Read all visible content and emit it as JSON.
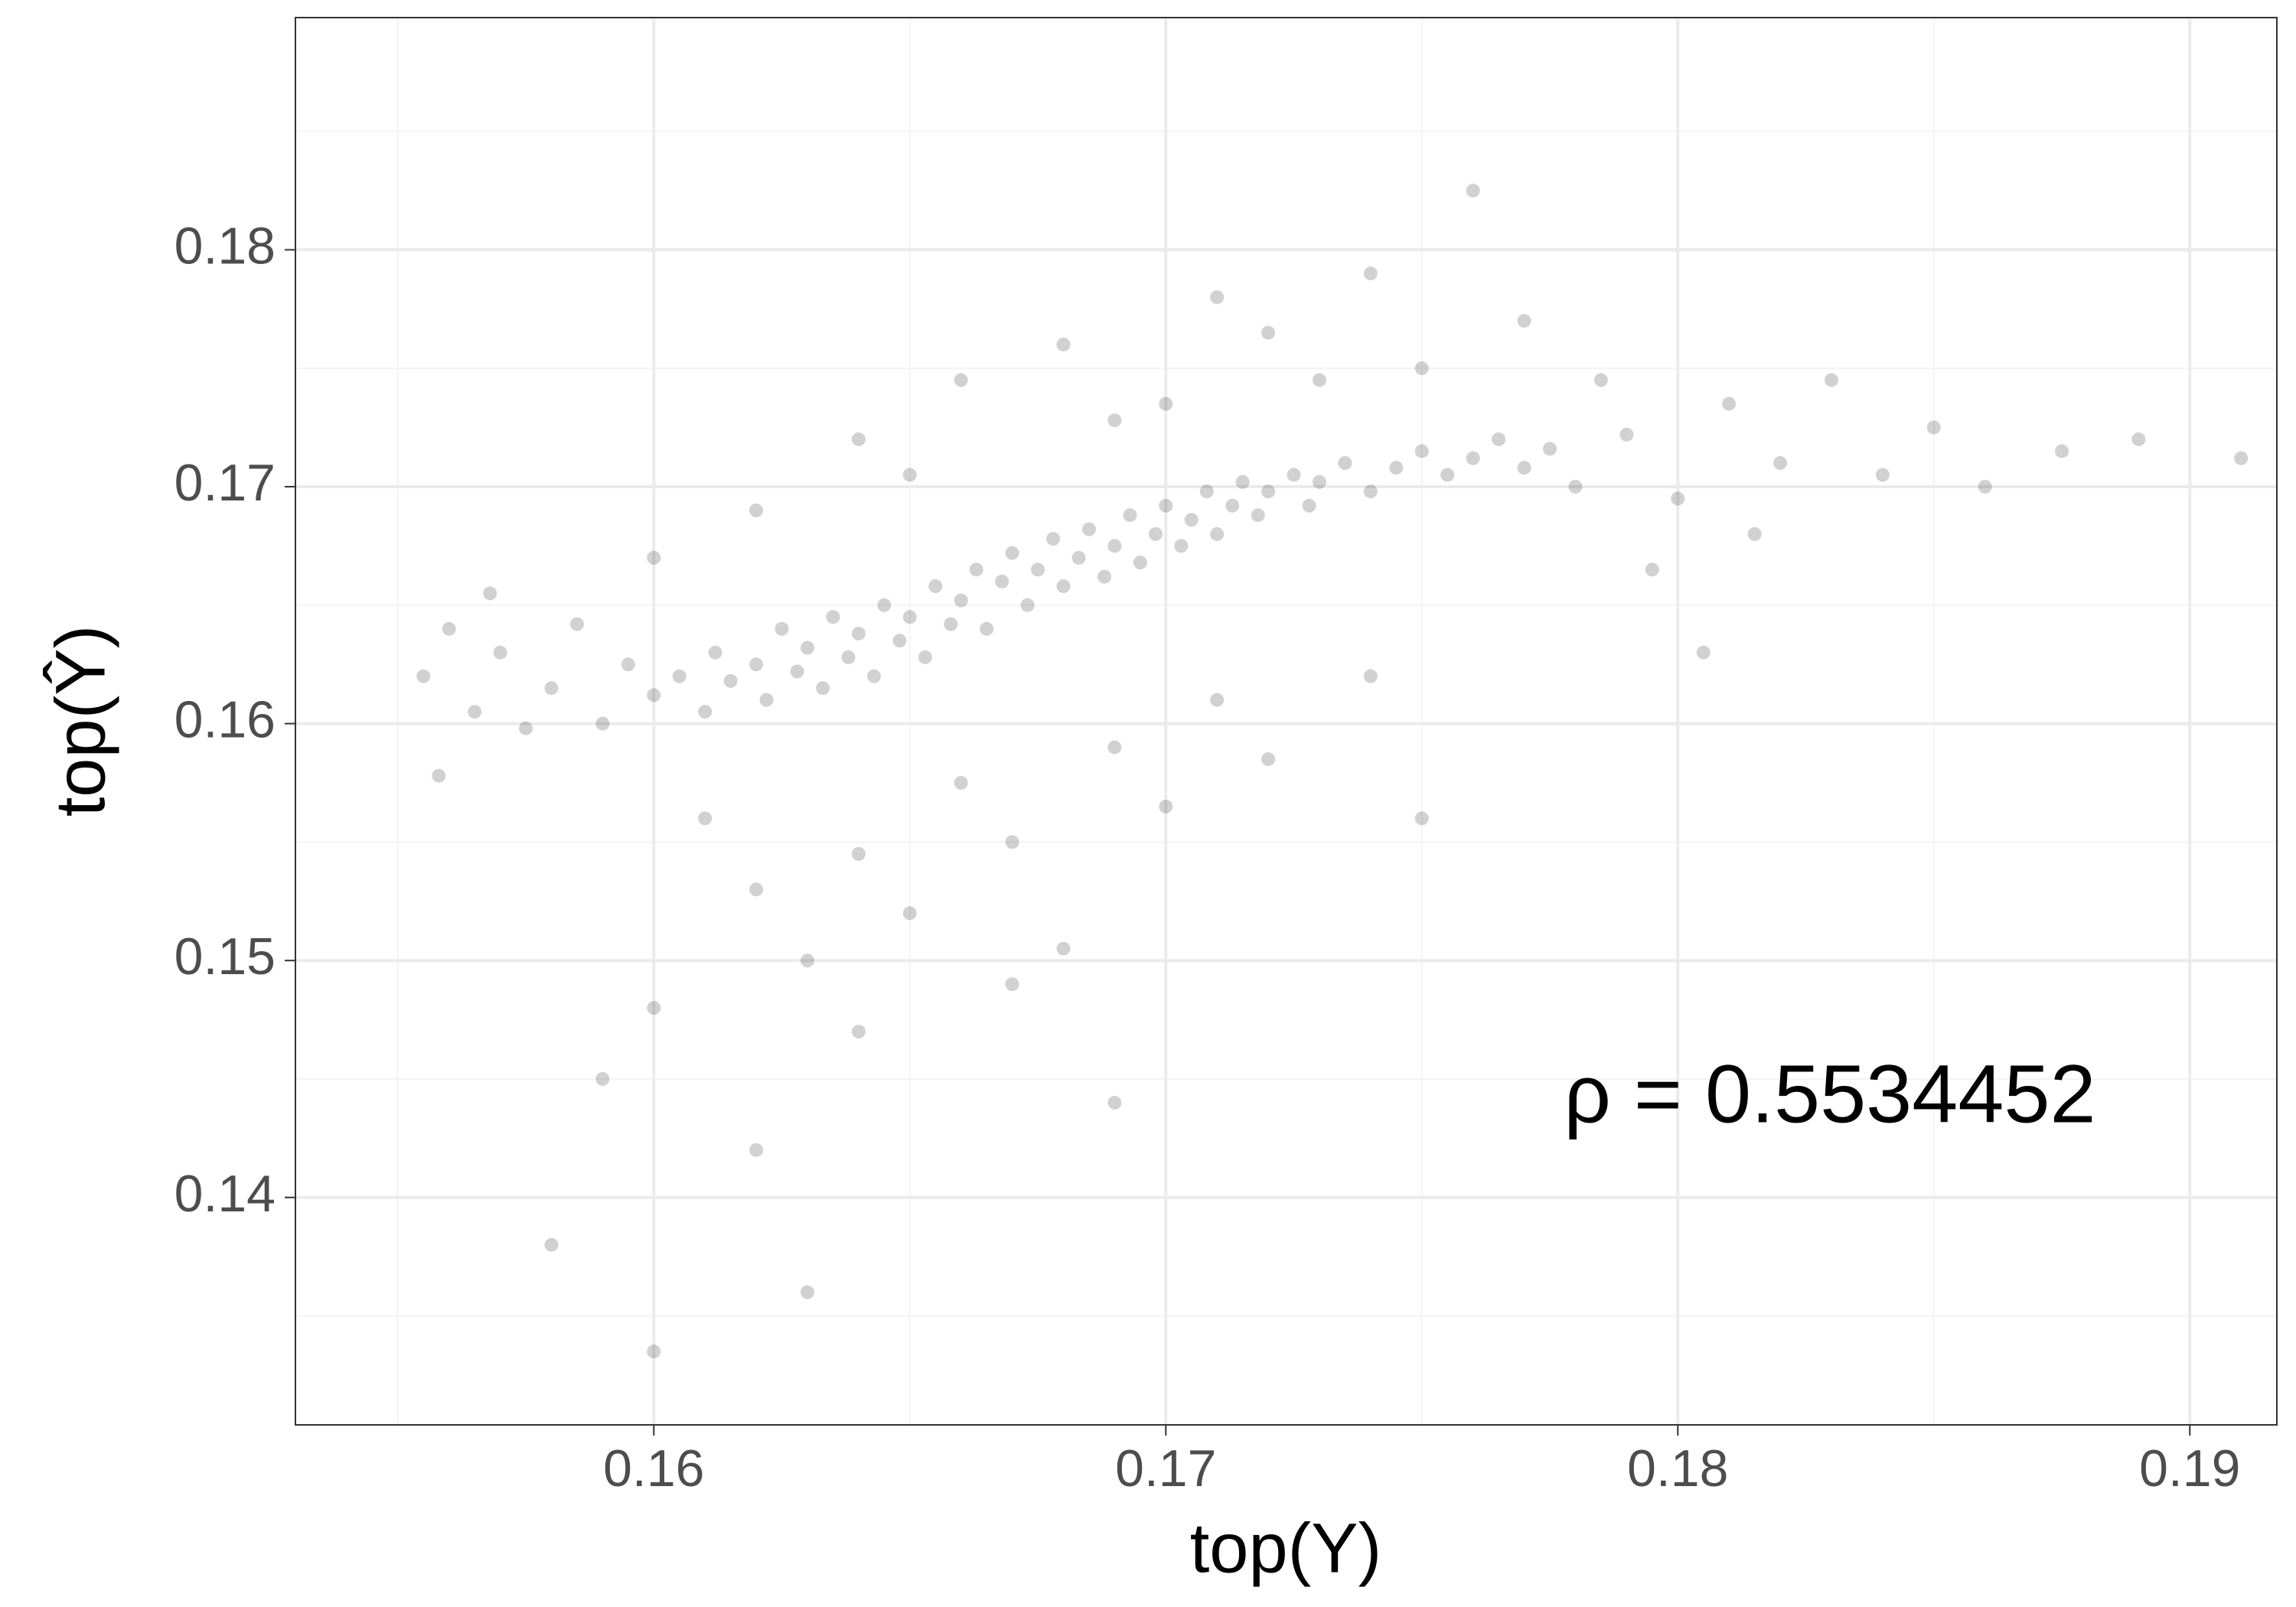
{
  "chart_data": {
    "type": "scatter",
    "x_label": "top(Y)",
    "y_label": "top(Ŷ)",
    "annotation": "ρ = 0.5534452",
    "color": "#000000",
    "alpha": 0.18,
    "grid": true,
    "xlim": [
      0.153,
      0.1917
    ],
    "ylim": [
      0.1304,
      0.1898
    ],
    "xticks": [
      0.16,
      0.17,
      0.18,
      0.19
    ],
    "yticks": [
      0.14,
      0.15,
      0.16,
      0.17,
      0.18
    ],
    "minor_xticks": [
      0.155,
      0.165,
      0.175,
      0.185
    ],
    "minor_yticks": [
      0.135,
      0.145,
      0.155,
      0.165,
      0.175,
      0.185
    ],
    "x": [
      0.16,
      0.1605,
      0.161,
      0.1612,
      0.1615,
      0.162,
      0.1622,
      0.1625,
      0.1628,
      0.163,
      0.1633,
      0.1635,
      0.1638,
      0.164,
      0.1643,
      0.1645,
      0.1648,
      0.165,
      0.1653,
      0.1655,
      0.1658,
      0.166,
      0.1663,
      0.1665,
      0.1668,
      0.167,
      0.1673,
      0.1675,
      0.1678,
      0.168,
      0.1683,
      0.1685,
      0.1688,
      0.169,
      0.1693,
      0.1695,
      0.1698,
      0.17,
      0.1703,
      0.1705,
      0.1708,
      0.171,
      0.1713,
      0.1715,
      0.1718,
      0.172,
      0.1725,
      0.1728,
      0.173,
      0.1735,
      0.174,
      0.1745,
      0.175,
      0.1755,
      0.176,
      0.1765,
      0.177,
      0.1775,
      0.1555,
      0.156,
      0.1565,
      0.157,
      0.1575,
      0.158,
      0.1585,
      0.159,
      0.1595,
      0.1558,
      0.1568,
      0.162,
      0.164,
      0.166,
      0.168,
      0.17,
      0.171,
      0.172,
      0.174,
      0.175,
      0.176,
      0.165,
      0.169,
      0.173,
      0.16,
      0.177,
      0.161,
      0.162,
      0.163,
      0.164,
      0.165,
      0.166,
      0.167,
      0.168,
      0.169,
      0.17,
      0.171,
      0.172,
      0.174,
      0.175,
      0.16,
      0.159,
      0.162,
      0.164,
      0.158,
      0.16,
      0.163,
      0.167,
      0.169,
      0.178,
      0.179,
      0.18,
      0.181,
      0.182,
      0.183,
      0.184,
      0.185,
      0.186,
      0.1875,
      0.189,
      0.191,
      0.1795,
      0.1815,
      0.1785,
      0.1805
    ],
    "values": [
      0.1612,
      0.162,
      0.1605,
      0.163,
      0.1618,
      0.1625,
      0.161,
      0.164,
      0.1622,
      0.1632,
      0.1615,
      0.1645,
      0.1628,
      0.1638,
      0.162,
      0.165,
      0.1635,
      0.1645,
      0.1628,
      0.1658,
      0.1642,
      0.1652,
      0.1665,
      0.164,
      0.166,
      0.1672,
      0.165,
      0.1665,
      0.1678,
      0.1658,
      0.167,
      0.1682,
      0.1662,
      0.1675,
      0.1688,
      0.1668,
      0.168,
      0.1692,
      0.1675,
      0.1686,
      0.1698,
      0.168,
      0.1692,
      0.1702,
      0.1688,
      0.1698,
      0.1705,
      0.1692,
      0.1702,
      0.171,
      0.1698,
      0.1708,
      0.1715,
      0.1705,
      0.1712,
      0.172,
      0.1708,
      0.1716,
      0.162,
      0.164,
      0.1605,
      0.163,
      0.1598,
      0.1615,
      0.1642,
      0.16,
      0.1625,
      0.1578,
      0.1655,
      0.169,
      0.172,
      0.1745,
      0.176,
      0.1735,
      0.178,
      0.1765,
      0.179,
      0.175,
      0.1825,
      0.1705,
      0.1728,
      0.1745,
      0.167,
      0.177,
      0.156,
      0.153,
      0.15,
      0.1545,
      0.152,
      0.1575,
      0.155,
      0.1505,
      0.159,
      0.1565,
      0.161,
      0.1585,
      0.162,
      0.156,
      0.148,
      0.145,
      0.142,
      0.147,
      0.138,
      0.1335,
      0.136,
      0.149,
      0.144,
      0.17,
      0.1722,
      0.1695,
      0.1735,
      0.171,
      0.1745,
      0.1705,
      0.1725,
      0.17,
      0.1715,
      0.172,
      0.1712,
      0.1665,
      0.168,
      0.1745,
      0.163
    ]
  }
}
